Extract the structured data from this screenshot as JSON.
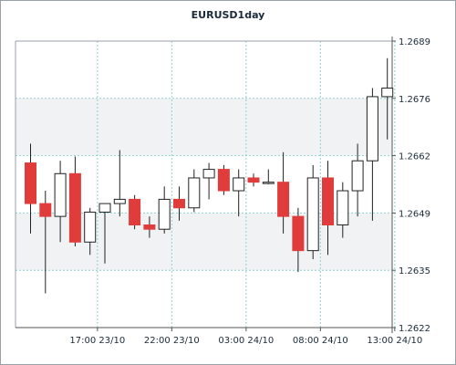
{
  "chart_data": {
    "type": "candlestick",
    "title": "EURUSD1day",
    "xlabel": "",
    "ylabel": "",
    "ylim": [
      1.2622,
      1.2689
    ],
    "y_ticks": [
      "1.2689",
      "1.2676",
      "1.2662",
      "1.2649",
      "1.2635",
      "1.2622"
    ],
    "x_ticks": [
      "17:00 23/10",
      "22:00 23/10",
      "03:00 24/10",
      "08:00 24/10",
      "13:00 24/10"
    ],
    "x_tick_candle_index": [
      4.5,
      9.5,
      14.5,
      19.5,
      24.5
    ],
    "grid": true,
    "up_color": "#ffffff",
    "down_color": "#e03c3c",
    "candles": [
      {
        "open": 1.26605,
        "high": 1.2665,
        "low": 1.2644,
        "close": 1.2651
      },
      {
        "open": 1.2651,
        "high": 1.2654,
        "low": 1.263,
        "close": 1.2648
      },
      {
        "open": 1.2648,
        "high": 1.2661,
        "low": 1.2642,
        "close": 1.2658
      },
      {
        "open": 1.2658,
        "high": 1.2662,
        "low": 1.2641,
        "close": 1.2642
      },
      {
        "open": 1.2642,
        "high": 1.265,
        "low": 1.2639,
        "close": 1.2649
      },
      {
        "open": 1.2649,
        "high": 1.2651,
        "low": 1.2637,
        "close": 1.2651
      },
      {
        "open": 1.2651,
        "high": 1.26635,
        "low": 1.2648,
        "close": 1.2652
      },
      {
        "open": 1.2652,
        "high": 1.2653,
        "low": 1.2645,
        "close": 1.2646
      },
      {
        "open": 1.2646,
        "high": 1.2648,
        "low": 1.2643,
        "close": 1.2645
      },
      {
        "open": 1.2645,
        "high": 1.2655,
        "low": 1.2644,
        "close": 1.2652
      },
      {
        "open": 1.2652,
        "high": 1.2655,
        "low": 1.2647,
        "close": 1.265
      },
      {
        "open": 1.265,
        "high": 1.2659,
        "low": 1.2649,
        "close": 1.2657
      },
      {
        "open": 1.2657,
        "high": 1.26605,
        "low": 1.2652,
        "close": 1.2659
      },
      {
        "open": 1.2659,
        "high": 1.266,
        "low": 1.2653,
        "close": 1.2654
      },
      {
        "open": 1.2654,
        "high": 1.2659,
        "low": 1.2648,
        "close": 1.2657
      },
      {
        "open": 1.2657,
        "high": 1.2658,
        "low": 1.2655,
        "close": 1.2656
      },
      {
        "open": 1.2656,
        "high": 1.2659,
        "low": 1.26555,
        "close": 1.2656
      },
      {
        "open": 1.2656,
        "high": 1.2663,
        "low": 1.2644,
        "close": 1.2648
      },
      {
        "open": 1.2648,
        "high": 1.265,
        "low": 1.2635,
        "close": 1.264
      },
      {
        "open": 1.264,
        "high": 1.266,
        "low": 1.2638,
        "close": 1.2657
      },
      {
        "open": 1.2657,
        "high": 1.2661,
        "low": 1.2639,
        "close": 1.2646
      },
      {
        "open": 1.2646,
        "high": 1.2656,
        "low": 1.2643,
        "close": 1.2654
      },
      {
        "open": 1.2654,
        "high": 1.2665,
        "low": 1.2648,
        "close": 1.2661
      },
      {
        "open": 1.2661,
        "high": 1.2678,
        "low": 1.2647,
        "close": 1.2676
      },
      {
        "open": 1.2676,
        "high": 1.2685,
        "low": 1.2666,
        "close": 1.2678
      }
    ]
  }
}
